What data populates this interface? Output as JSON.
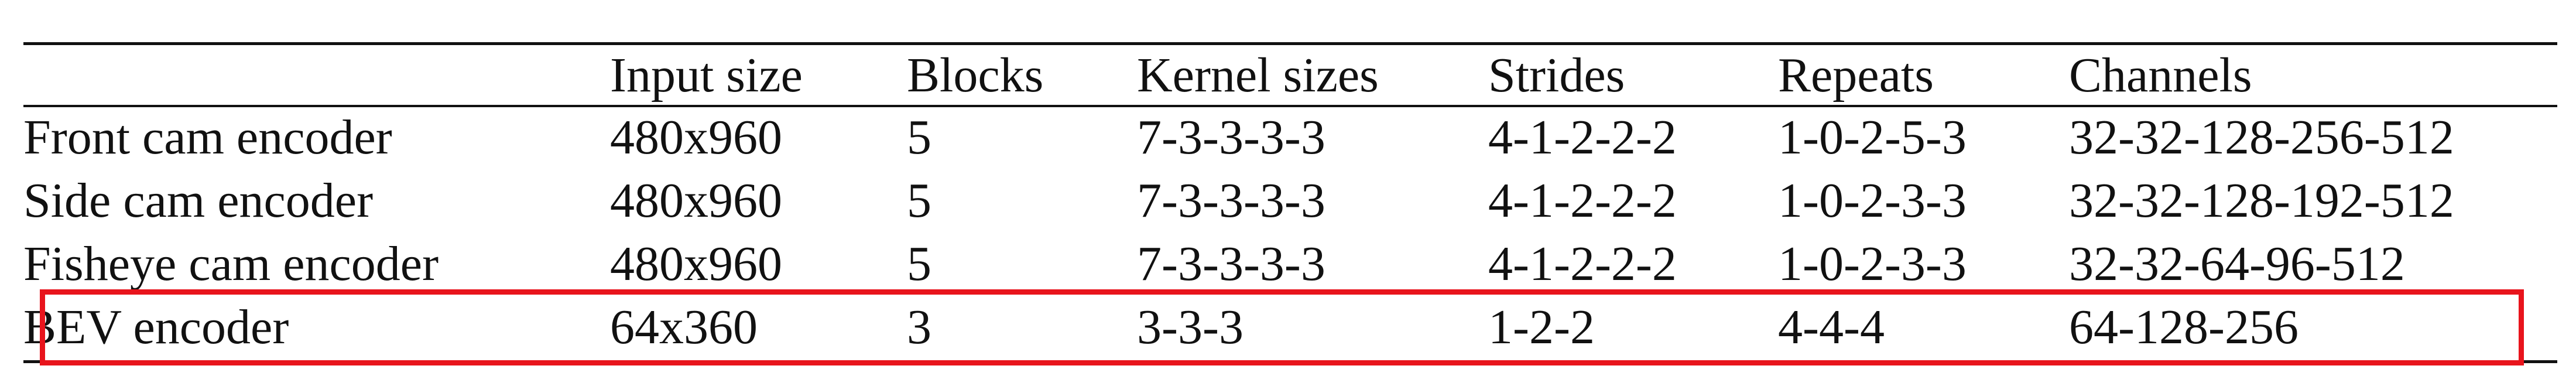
{
  "table": {
    "headers": [
      "",
      "Input size",
      "Blocks",
      "Kernel sizes",
      "Strides",
      "Repeats",
      "Channels"
    ],
    "rows": [
      [
        "Front cam encoder",
        "480x960",
        "5",
        "7-3-3-3-3",
        "4-1-2-2-2",
        "1-0-2-5-3",
        "32-32-128-256-512"
      ],
      [
        "Side cam encoder",
        "480x960",
        "5",
        "7-3-3-3-3",
        "4-1-2-2-2",
        "1-0-2-3-3",
        "32-32-128-192-512"
      ],
      [
        "Fisheye cam encoder",
        "480x960",
        "5",
        "7-3-3-3-3",
        "4-1-2-2-2",
        "1-0-2-3-3",
        "32-32-64-96-512"
      ],
      [
        "BEV encoder",
        "64x360",
        "3",
        "3-3-3",
        "1-2-2",
        "4-4-4",
        "64-128-256"
      ]
    ],
    "highlighted_row": "BEV encoder",
    "highlight_color": "#e8141c"
  }
}
